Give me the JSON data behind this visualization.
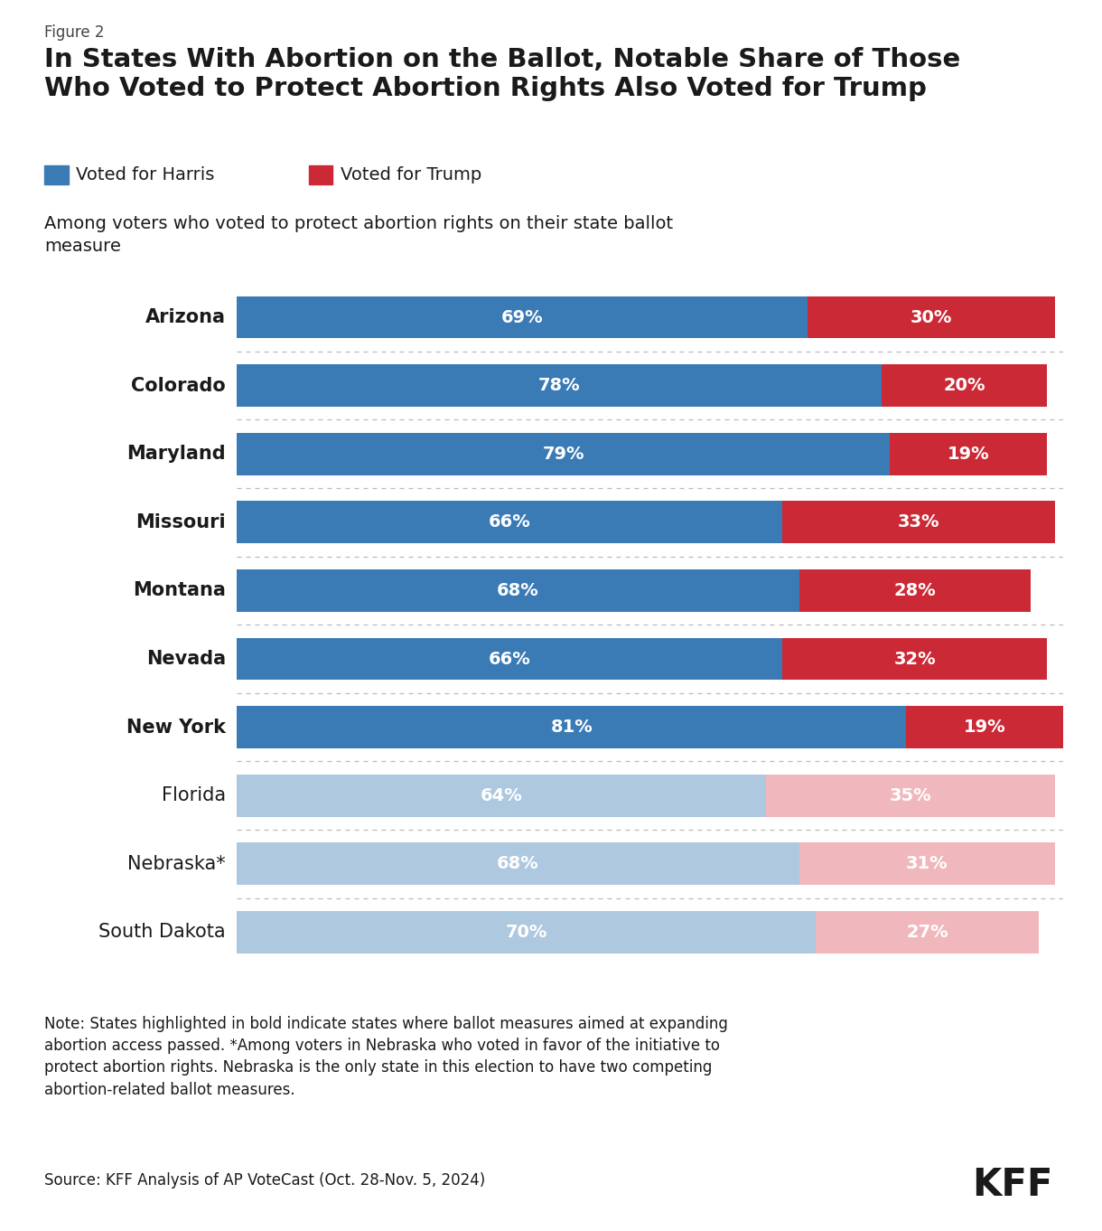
{
  "figure_label": "Figure 2",
  "title": "In States With Abortion on the Ballot, Notable Share of Those\nWho Voted to Protect Abortion Rights Also Voted for Trump",
  "subtitle": "Among voters who voted to protect abortion rights on their state ballot\nmeasure",
  "legend_harris": "Voted for Harris",
  "legend_trump": "Voted for Trump",
  "states": [
    "Arizona",
    "Colorado",
    "Maryland",
    "Missouri",
    "Montana",
    "Nevada",
    "New York",
    "Florida",
    "Nebraska*",
    "South Dakota"
  ],
  "bold_states": [
    "Arizona",
    "Colorado",
    "Maryland",
    "Missouri",
    "Montana",
    "Nevada",
    "New York"
  ],
  "harris_values": [
    69,
    78,
    79,
    66,
    68,
    66,
    81,
    64,
    68,
    70
  ],
  "trump_values": [
    30,
    20,
    19,
    33,
    28,
    32,
    19,
    35,
    31,
    27
  ],
  "bold_harris_color": "#3a7ab5",
  "bold_trump_color": "#cc2936",
  "faded_harris_color": "#adc8df",
  "faded_trump_color": "#f0b8bc",
  "bar_label_color": "#ffffff",
  "state_label_fontsize": 15,
  "bar_label_fontsize": 14,
  "note_text": "Note: States highlighted in bold indicate states where ballot measures aimed at expanding\nabortion access passed. *Among voters in Nebraska who voted in favor of the initiative to\nprotect abortion rights. Nebraska is the only state in this election to have two competing\nabortion-related ballot measures.",
  "source_text": "Source: KFF Analysis of AP VoteCast (Oct. 28-Nov. 5, 2024)",
  "background_color": "#ffffff",
  "bar_height": 0.62,
  "divider_color": "#bbbbbb"
}
